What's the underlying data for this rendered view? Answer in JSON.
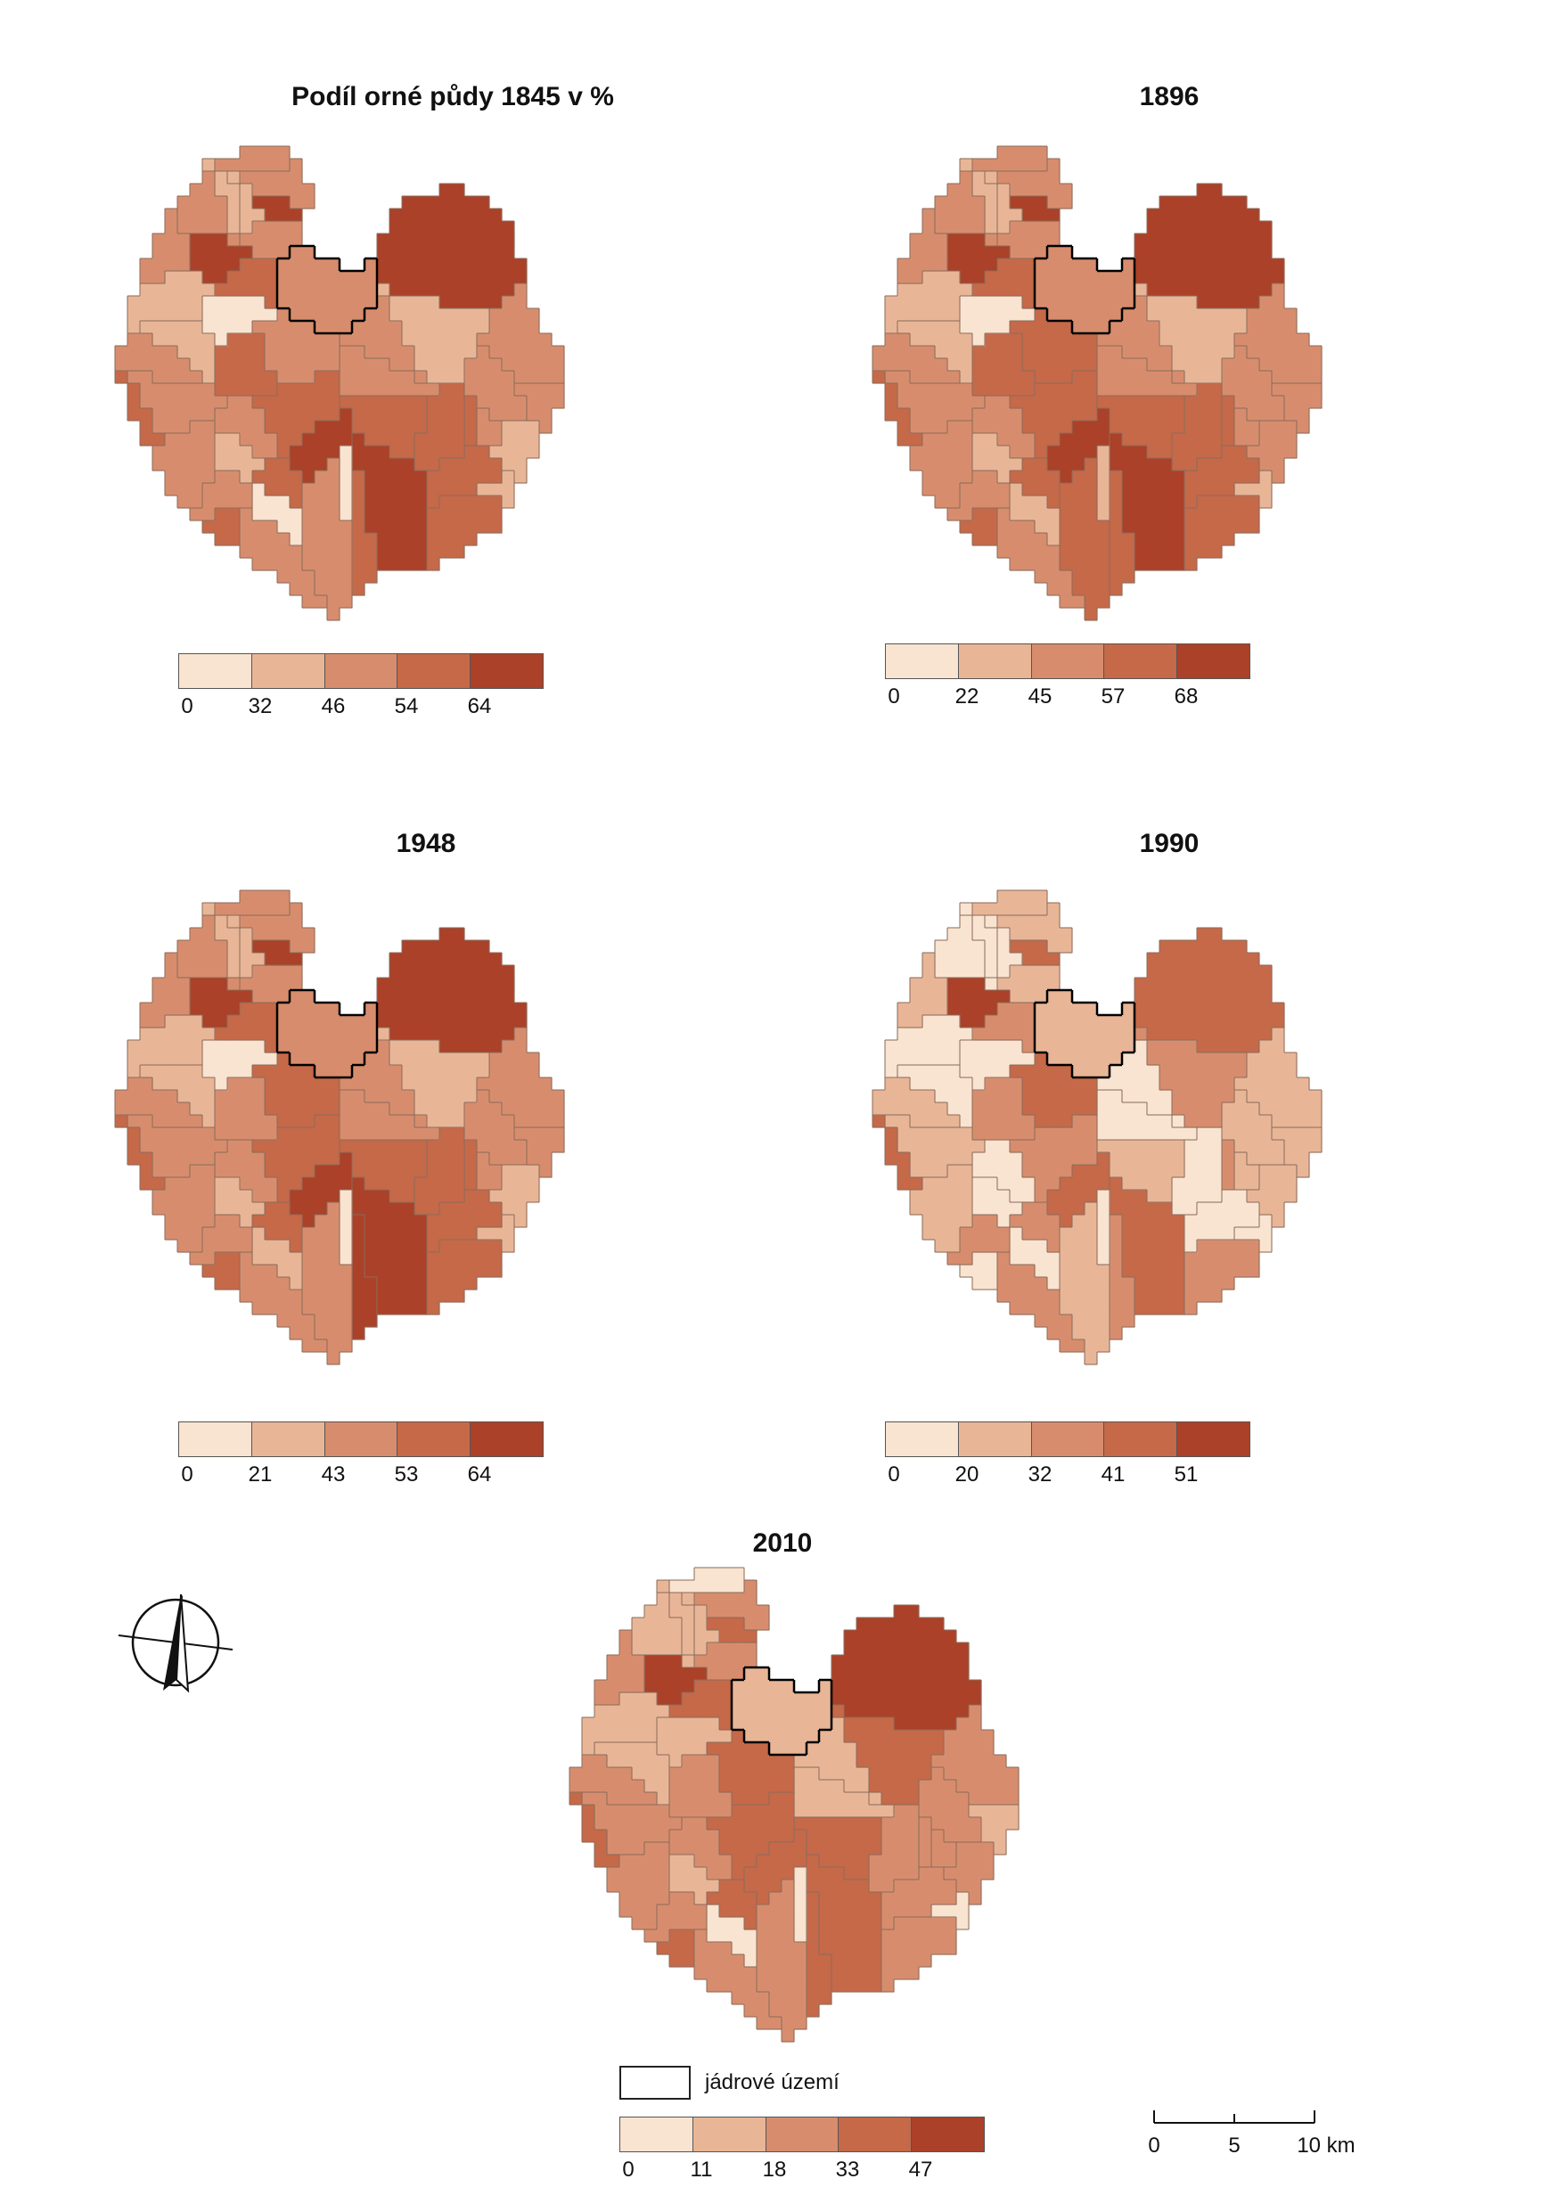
{
  "palette": [
    "#f8e4d0",
    "#e8b697",
    "#d78d6d",
    "#c56949",
    "#ab4128"
  ],
  "maps": [
    {
      "title": "Podíl orné půdy 1845 v %",
      "breaks": [
        "0",
        "32",
        "46",
        "54",
        "64"
      ],
      "regions": [
        2,
        2,
        3,
        2,
        1,
        2,
        2,
        3,
        2,
        4,
        2,
        3,
        0,
        2,
        3,
        2,
        2,
        1,
        4,
        3,
        2,
        4,
        3,
        4,
        3,
        2,
        0,
        1,
        2,
        1,
        3,
        4,
        2,
        2,
        1,
        3,
        2,
        3,
        1,
        2,
        3,
        0,
        2,
        1,
        2,
        3,
        1,
        2
      ]
    },
    {
      "title": "1896",
      "breaks": [
        "0",
        "22",
        "45",
        "57",
        "68"
      ],
      "regions": [
        2,
        2,
        3,
        2,
        1,
        2,
        2,
        3,
        2,
        4,
        2,
        3,
        1,
        2,
        3,
        2,
        2,
        1,
        4,
        3,
        2,
        4,
        3,
        4,
        3,
        2,
        0,
        1,
        2,
        1,
        3,
        4,
        3,
        2,
        1,
        3,
        2,
        3,
        2,
        2,
        3,
        1,
        3,
        1,
        2,
        3,
        1,
        2
      ]
    },
    {
      "title": "1948",
      "breaks": [
        "0",
        "21",
        "43",
        "53",
        "64"
      ],
      "regions": [
        2,
        2,
        3,
        2,
        1,
        2,
        2,
        3,
        2,
        4,
        2,
        3,
        1,
        2,
        3,
        2,
        2,
        1,
        4,
        3,
        2,
        4,
        4,
        4,
        2,
        2,
        0,
        1,
        2,
        1,
        3,
        4,
        3,
        2,
        1,
        3,
        2,
        3,
        1,
        2,
        3,
        0,
        2,
        1,
        2,
        3,
        1,
        2
      ]
    },
    {
      "title": "1990",
      "breaks": [
        "0",
        "20",
        "32",
        "41",
        "51"
      ],
      "regions": [
        1,
        1,
        0,
        1,
        0,
        0,
        1,
        0,
        0,
        3,
        0,
        2,
        0,
        1,
        3,
        1,
        0,
        0,
        4,
        2,
        1,
        3,
        2,
        3,
        2,
        1,
        0,
        0,
        1,
        2,
        2,
        3,
        3,
        2,
        0,
        2,
        1,
        2,
        1,
        1,
        0,
        0,
        1,
        0,
        2,
        1,
        0,
        1
      ]
    },
    {
      "title": "2010",
      "breaks": [
        "0",
        "11",
        "18",
        "33",
        "47"
      ],
      "regions": [
        2,
        2,
        3,
        0,
        1,
        2,
        2,
        2,
        1,
        3,
        1,
        3,
        0,
        2,
        3,
        2,
        1,
        1,
        4,
        2,
        1,
        3,
        3,
        4,
        2,
        2,
        1,
        1,
        2,
        3,
        2,
        3,
        3,
        2,
        0,
        3,
        2,
        3,
        2,
        1,
        2,
        0,
        2,
        1,
        2,
        3,
        1,
        2
      ]
    }
  ],
  "core_area_label": "jádrové území",
  "scale_labels": [
    "0",
    "5",
    "10 km"
  ]
}
